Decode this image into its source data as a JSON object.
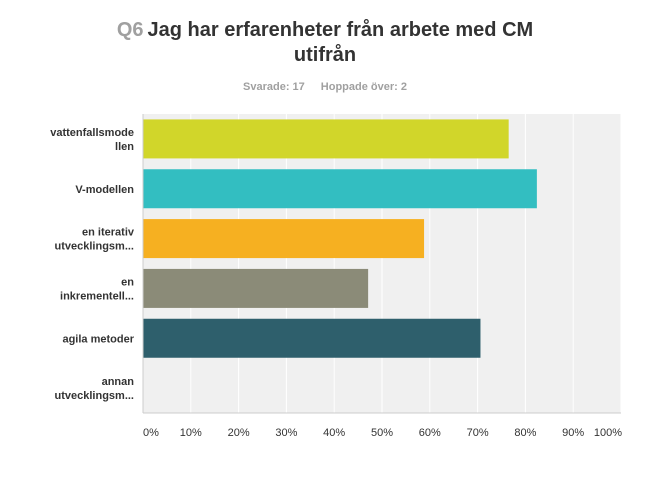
{
  "question": {
    "number": "Q6",
    "title_line1": "Jag har erfarenheter från arbete med CM",
    "title_line2": "utifrån"
  },
  "stats": {
    "answered": "Svarade: 17",
    "skipped": "Hoppade över: 2"
  },
  "chart_data": {
    "type": "bar",
    "orientation": "horizontal",
    "categories": [
      [
        "vattenfallsmode",
        "llen"
      ],
      [
        "V-modellen"
      ],
      [
        "en iterativ",
        "utvecklingsm..."
      ],
      [
        "en",
        "inkrementell..."
      ],
      [
        "agila metoder"
      ],
      [
        "annan",
        "utvecklingsm..."
      ]
    ],
    "values": [
      76.5,
      82.4,
      58.8,
      47.1,
      70.6,
      0
    ],
    "colors": [
      "#d1d62a",
      "#33bec1",
      "#f6b021",
      "#8b8b78",
      "#2e5f6c",
      "#cccccc"
    ],
    "xlim": [
      0,
      100
    ],
    "x_ticks": [
      "0%",
      "10%",
      "20%",
      "30%",
      "40%",
      "50%",
      "60%",
      "70%",
      "80%",
      "90%",
      "100%"
    ],
    "grid": true
  }
}
